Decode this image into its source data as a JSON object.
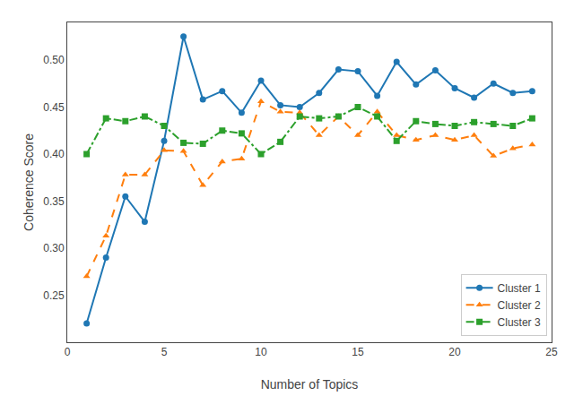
{
  "chart_data": {
    "type": "line",
    "xlabel": "Number of Topics",
    "ylabel": "Coherence Score",
    "x": [
      1,
      2,
      3,
      4,
      5,
      6,
      7,
      8,
      9,
      10,
      11,
      12,
      13,
      14,
      15,
      16,
      17,
      18,
      19,
      20,
      21,
      22,
      23,
      24
    ],
    "series": [
      {
        "name": "Cluster 1",
        "color": "#1f77b4",
        "marker": "circle",
        "line_style": "solid",
        "values": [
          0.22,
          0.29,
          0.355,
          0.328,
          0.414,
          0.525,
          0.458,
          0.467,
          0.444,
          0.478,
          0.452,
          0.45,
          0.465,
          0.49,
          0.488,
          0.462,
          0.498,
          0.474,
          0.489,
          0.47,
          0.46,
          0.475,
          0.465,
          0.467
        ]
      },
      {
        "name": "Cluster 2",
        "color": "#ff7f0e",
        "marker": "triangle-up",
        "line_style": "dash",
        "values": [
          0.27,
          0.313,
          0.378,
          0.378,
          0.404,
          0.403,
          0.367,
          0.392,
          0.395,
          0.456,
          0.445,
          0.444,
          0.42,
          0.44,
          0.42,
          0.445,
          0.42,
          0.415,
          0.42,
          0.415,
          0.42,
          0.398,
          0.406,
          0.41
        ]
      },
      {
        "name": "Cluster 3",
        "color": "#2ca02c",
        "marker": "square",
        "line_style": "dashdot",
        "values": [
          0.4,
          0.438,
          0.435,
          0.44,
          0.43,
          0.412,
          0.411,
          0.425,
          0.422,
          0.4,
          0.413,
          0.44,
          0.438,
          0.44,
          0.45,
          0.44,
          0.414,
          0.435,
          0.432,
          0.43,
          0.434,
          0.432,
          0.43,
          0.438
        ]
      }
    ],
    "xlim": [
      0,
      25
    ],
    "ylim": [
      0.2,
      0.54
    ],
    "xticks": [
      0,
      5,
      10,
      15,
      20,
      25
    ],
    "yticks": [
      0.25,
      {
        "value": 0.3,
        "label": "0.30"
      },
      0.35,
      {
        "value": 0.4,
        "label": "0.40"
      },
      0.45,
      {
        "value": 0.5,
        "label": "0.50"
      }
    ],
    "grid": false,
    "legend": "lower right"
  }
}
